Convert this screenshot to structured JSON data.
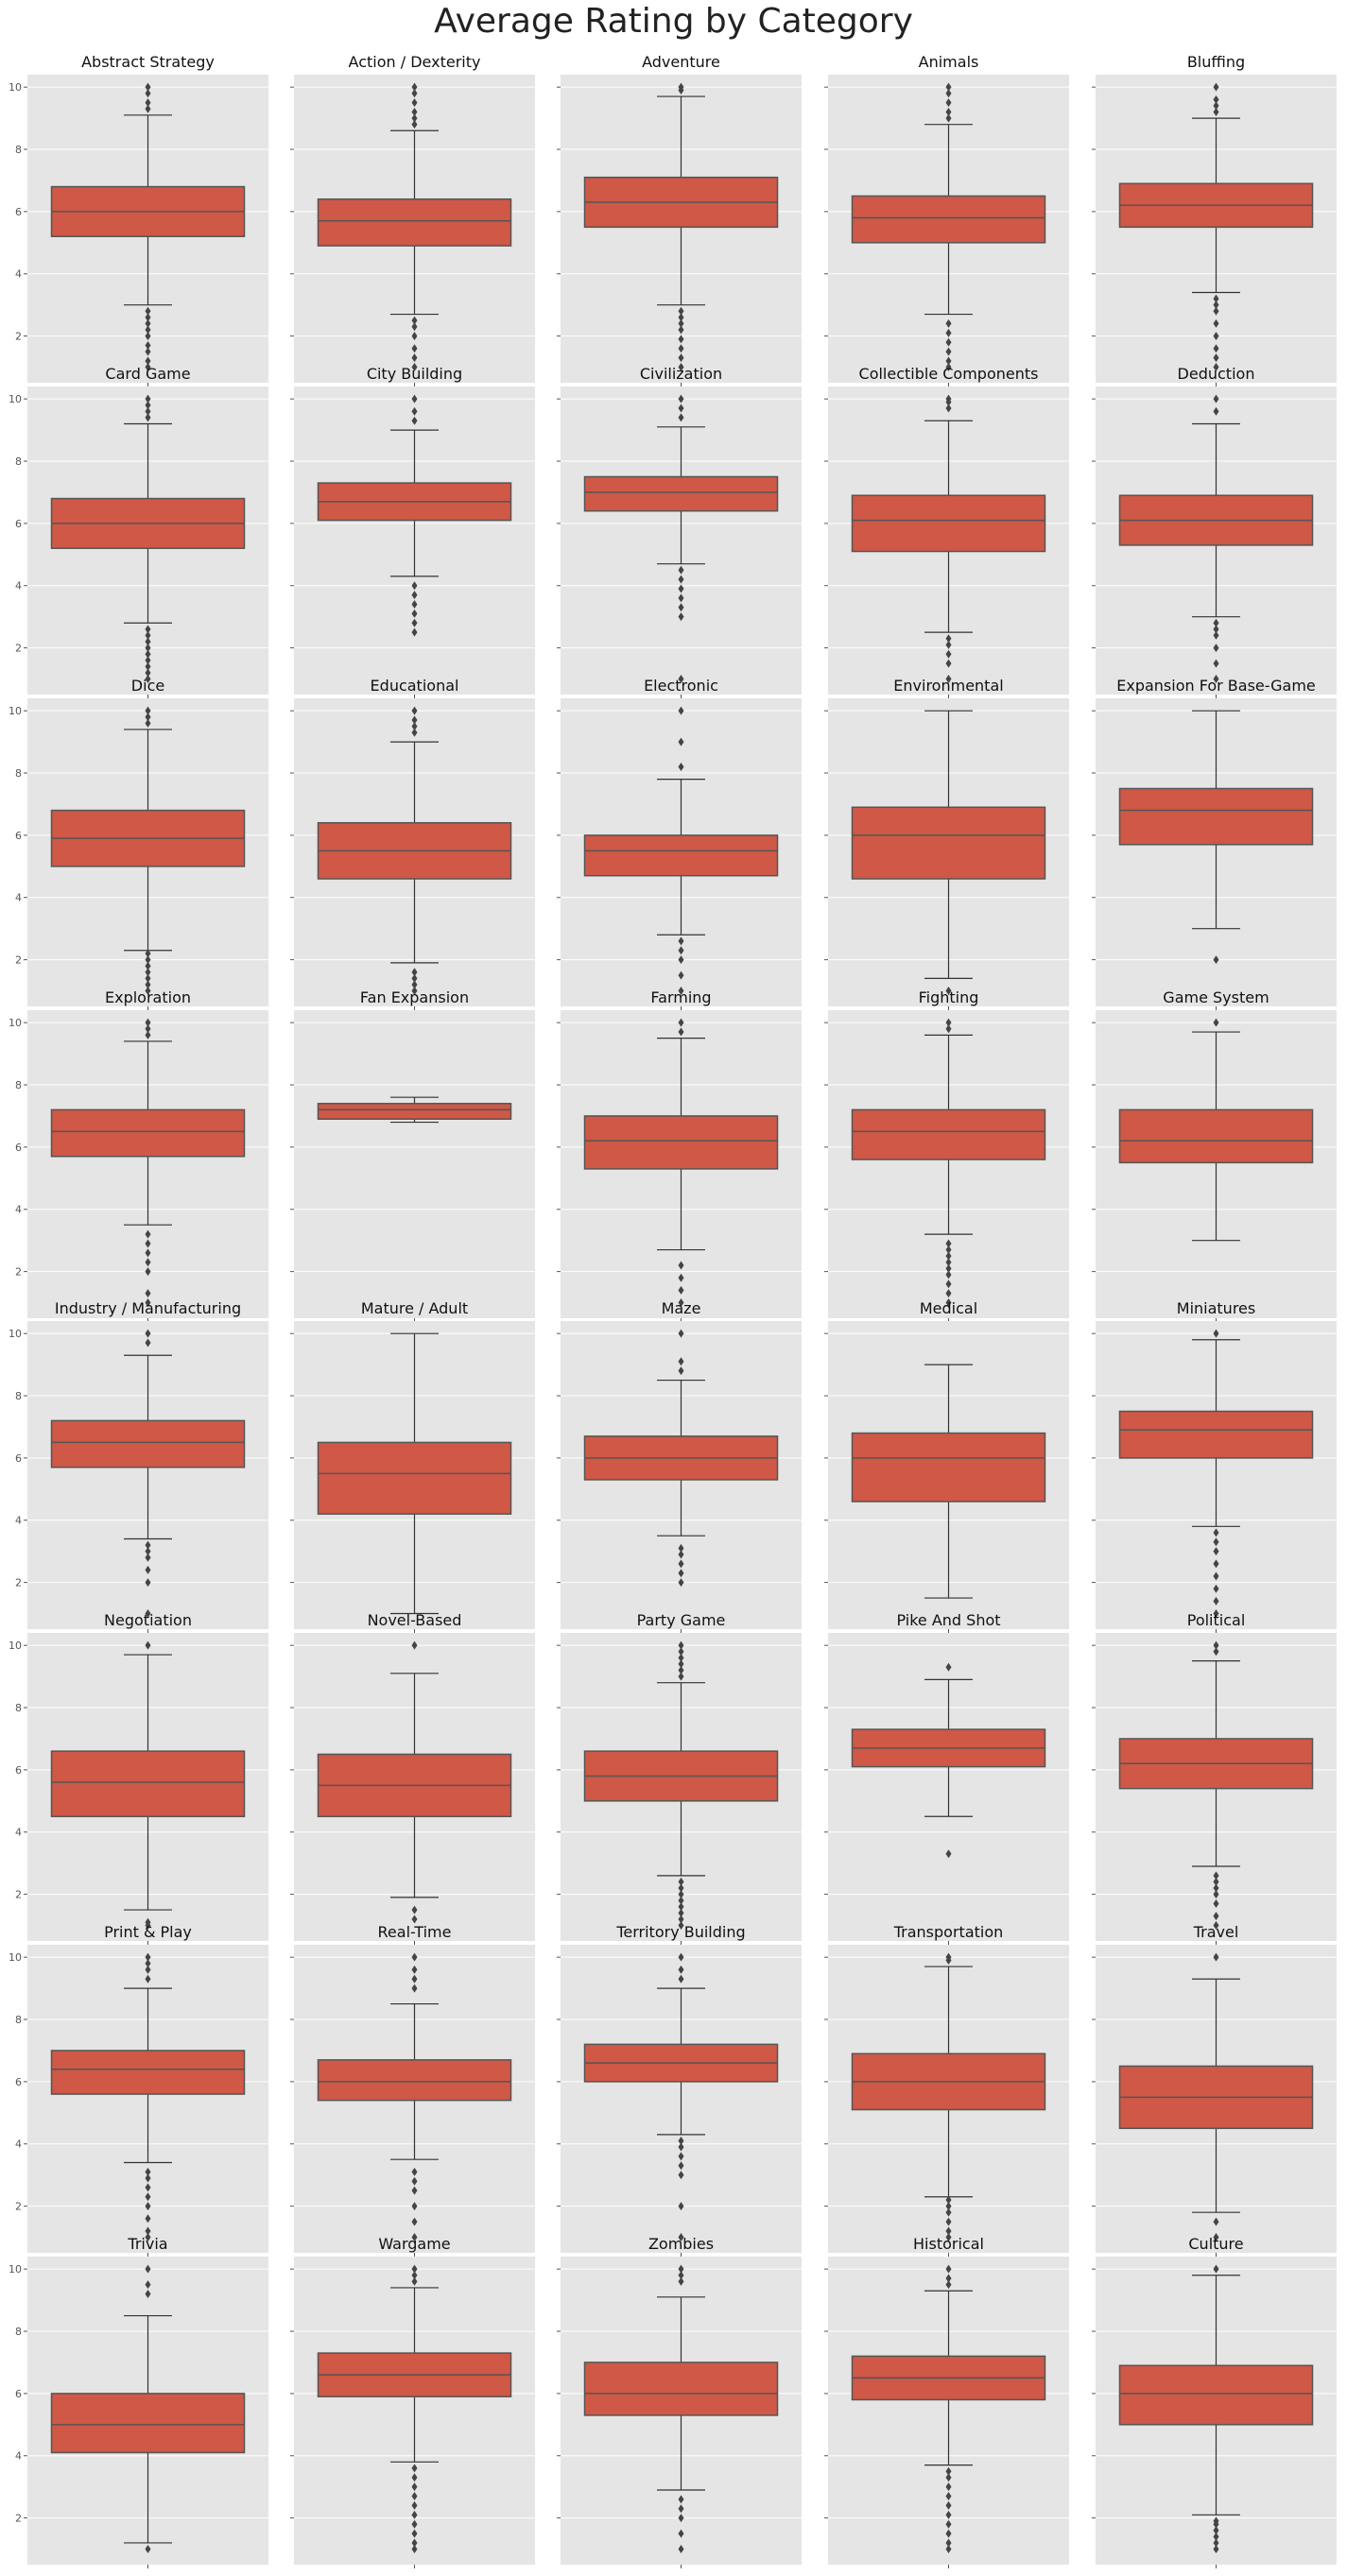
{
  "figure": {
    "title": "Average Rating by Category"
  },
  "colors": {
    "panel_bg": "#e5e5e5",
    "grid": "#ffffff",
    "box_fill": "#cf5846",
    "box_edge": "#555555",
    "whisker": "#333333",
    "flier": "#444444"
  },
  "chart_data": {
    "type": "box",
    "layout": {
      "rows": 8,
      "cols": 5,
      "sharey": true
    },
    "ylim": [
      0.5,
      10.4
    ],
    "yticks": [
      2,
      4,
      6,
      8,
      10
    ],
    "grid": true,
    "panels": [
      {
        "category": "Abstract Strategy",
        "whislo": 3.0,
        "q1": 5.2,
        "med": 6.0,
        "q3": 6.8,
        "whishi": 9.1,
        "fliers": [
          1.0,
          1.2,
          1.5,
          1.7,
          2.0,
          2.2,
          2.4,
          2.6,
          2.8,
          9.3,
          9.5,
          9.8,
          10.0
        ]
      },
      {
        "category": "Action / Dexterity",
        "whislo": 2.7,
        "q1": 4.9,
        "med": 5.7,
        "q3": 6.4,
        "whishi": 8.6,
        "fliers": [
          1.0,
          1.3,
          1.6,
          2.0,
          2.3,
          2.5,
          8.8,
          9.0,
          9.2,
          9.5,
          9.8,
          10.0
        ]
      },
      {
        "category": "Adventure",
        "whislo": 3.0,
        "q1": 5.5,
        "med": 6.3,
        "q3": 7.1,
        "whishi": 9.7,
        "fliers": [
          1.0,
          1.3,
          1.6,
          1.9,
          2.2,
          2.4,
          2.6,
          2.8,
          9.9,
          10.0
        ]
      },
      {
        "category": "Animals",
        "whislo": 2.7,
        "q1": 5.0,
        "med": 5.8,
        "q3": 6.5,
        "whishi": 8.8,
        "fliers": [
          1.0,
          1.2,
          1.5,
          1.8,
          2.1,
          2.4,
          9.0,
          9.2,
          9.5,
          9.8,
          10.0
        ]
      },
      {
        "category": "Bluffing",
        "whislo": 3.4,
        "q1": 5.5,
        "med": 6.2,
        "q3": 6.9,
        "whishi": 9.0,
        "fliers": [
          1.0,
          1.3,
          1.6,
          2.0,
          2.4,
          2.8,
          3.0,
          3.2,
          9.2,
          9.4,
          9.6,
          10.0
        ]
      },
      {
        "category": "Card Game",
        "whislo": 2.8,
        "q1": 5.2,
        "med": 6.0,
        "q3": 6.8,
        "whishi": 9.2,
        "fliers": [
          1.0,
          1.2,
          1.4,
          1.6,
          1.8,
          2.0,
          2.2,
          2.4,
          2.6,
          9.4,
          9.6,
          9.8,
          10.0
        ]
      },
      {
        "category": "City Building",
        "whislo": 4.3,
        "q1": 6.1,
        "med": 6.7,
        "q3": 7.3,
        "whishi": 9.0,
        "fliers": [
          2.5,
          2.8,
          3.1,
          3.4,
          3.7,
          4.0,
          9.3,
          9.6,
          10.0
        ]
      },
      {
        "category": "Civilization",
        "whislo": 4.7,
        "q1": 6.4,
        "med": 7.0,
        "q3": 7.5,
        "whishi": 9.1,
        "fliers": [
          1.0,
          3.0,
          3.3,
          3.6,
          3.9,
          4.2,
          4.5,
          9.4,
          9.7,
          10.0
        ]
      },
      {
        "category": "Collectible Components",
        "whislo": 2.5,
        "q1": 5.1,
        "med": 6.1,
        "q3": 6.9,
        "whishi": 9.3,
        "fliers": [
          1.0,
          1.5,
          1.8,
          2.1,
          2.3,
          9.7,
          9.9,
          10.0
        ]
      },
      {
        "category": "Deduction",
        "whislo": 3.0,
        "q1": 5.3,
        "med": 6.1,
        "q3": 6.9,
        "whishi": 9.2,
        "fliers": [
          1.0,
          1.5,
          2.0,
          2.4,
          2.6,
          2.8,
          9.6,
          10.0
        ]
      },
      {
        "category": "Dice",
        "whislo": 2.3,
        "q1": 5.0,
        "med": 5.9,
        "q3": 6.8,
        "whishi": 9.4,
        "fliers": [
          1.0,
          1.2,
          1.4,
          1.6,
          1.8,
          2.0,
          2.2,
          9.6,
          9.8,
          10.0
        ]
      },
      {
        "category": "Educational",
        "whislo": 1.9,
        "q1": 4.6,
        "med": 5.5,
        "q3": 6.4,
        "whishi": 9.0,
        "fliers": [
          1.0,
          1.2,
          1.4,
          1.6,
          9.3,
          9.5,
          9.7,
          10.0
        ]
      },
      {
        "category": "Electronic",
        "whislo": 2.8,
        "q1": 4.7,
        "med": 5.5,
        "q3": 6.0,
        "whishi": 7.8,
        "fliers": [
          1.0,
          1.5,
          2.0,
          2.3,
          2.6,
          8.2,
          9.0,
          10.0
        ]
      },
      {
        "category": "Environmental",
        "whislo": 1.4,
        "q1": 4.6,
        "med": 6.0,
        "q3": 6.9,
        "whishi": 10.0,
        "fliers": [
          1.0
        ]
      },
      {
        "category": "Expansion For Base-Game",
        "whislo": 3.0,
        "q1": 5.7,
        "med": 6.8,
        "q3": 7.5,
        "whishi": 10.0,
        "fliers": [
          2.0
        ]
      },
      {
        "category": "Exploration",
        "whislo": 3.5,
        "q1": 5.7,
        "med": 6.5,
        "q3": 7.2,
        "whishi": 9.4,
        "fliers": [
          1.0,
          1.3,
          2.0,
          2.3,
          2.6,
          2.9,
          3.2,
          9.6,
          9.8,
          10.0
        ]
      },
      {
        "category": "Fan Expansion",
        "whislo": 6.8,
        "q1": 6.9,
        "med": 7.2,
        "q3": 7.4,
        "whishi": 7.6,
        "fliers": []
      },
      {
        "category": "Farming",
        "whislo": 2.7,
        "q1": 5.3,
        "med": 6.2,
        "q3": 7.0,
        "whishi": 9.5,
        "fliers": [
          1.0,
          1.4,
          1.8,
          2.2,
          9.7,
          10.0
        ]
      },
      {
        "category": "Fighting",
        "whislo": 3.2,
        "q1": 5.6,
        "med": 6.5,
        "q3": 7.2,
        "whishi": 9.6,
        "fliers": [
          1.0,
          1.3,
          1.6,
          1.9,
          2.1,
          2.3,
          2.5,
          2.7,
          2.9,
          9.8,
          10.0
        ]
      },
      {
        "category": "Game System",
        "whislo": 3.0,
        "q1": 5.5,
        "med": 6.2,
        "q3": 7.2,
        "whishi": 9.7,
        "fliers": [
          10.0
        ]
      },
      {
        "category": "Industry / Manufacturing",
        "whislo": 3.4,
        "q1": 5.7,
        "med": 6.5,
        "q3": 7.2,
        "whishi": 9.3,
        "fliers": [
          1.0,
          2.0,
          2.4,
          2.8,
          3.0,
          3.2,
          9.7,
          10.0
        ]
      },
      {
        "category": "Mature / Adult",
        "whislo": 1.0,
        "q1": 4.2,
        "med": 5.5,
        "q3": 6.5,
        "whishi": 10.0,
        "fliers": []
      },
      {
        "category": "Maze",
        "whislo": 3.5,
        "q1": 5.3,
        "med": 6.0,
        "q3": 6.7,
        "whishi": 8.5,
        "fliers": [
          2.0,
          2.3,
          2.6,
          2.9,
          3.1,
          8.8,
          9.1,
          10.0
        ]
      },
      {
        "category": "Medical",
        "whislo": 1.5,
        "q1": 4.6,
        "med": 6.0,
        "q3": 6.8,
        "whishi": 9.0,
        "fliers": []
      },
      {
        "category": "Miniatures",
        "whislo": 3.8,
        "q1": 6.0,
        "med": 6.9,
        "q3": 7.5,
        "whishi": 9.8,
        "fliers": [
          1.0,
          1.4,
          1.8,
          2.2,
          2.6,
          3.0,
          3.3,
          3.6,
          10.0
        ]
      },
      {
        "category": "Negotiation",
        "whislo": 1.5,
        "q1": 4.5,
        "med": 5.6,
        "q3": 6.6,
        "whishi": 9.7,
        "fliers": [
          1.0,
          1.1,
          10.0
        ]
      },
      {
        "category": "Novel-Based",
        "whislo": 1.9,
        "q1": 4.5,
        "med": 5.5,
        "q3": 6.5,
        "whishi": 9.1,
        "fliers": [
          1.2,
          1.5,
          10.0
        ]
      },
      {
        "category": "Party Game",
        "whislo": 2.6,
        "q1": 5.0,
        "med": 5.8,
        "q3": 6.6,
        "whishi": 8.8,
        "fliers": [
          1.0,
          1.2,
          1.4,
          1.6,
          1.8,
          2.0,
          2.2,
          2.4,
          9.0,
          9.2,
          9.4,
          9.6,
          9.8,
          10.0
        ]
      },
      {
        "category": "Pike And Shot",
        "whislo": 4.5,
        "q1": 6.1,
        "med": 6.7,
        "q3": 7.3,
        "whishi": 8.9,
        "fliers": [
          3.3,
          9.3
        ]
      },
      {
        "category": "Political",
        "whislo": 2.9,
        "q1": 5.4,
        "med": 6.2,
        "q3": 7.0,
        "whishi": 9.5,
        "fliers": [
          1.0,
          1.3,
          1.7,
          2.0,
          2.2,
          2.4,
          2.6,
          9.8,
          10.0
        ]
      },
      {
        "category": "Print & Play",
        "whislo": 3.4,
        "q1": 5.6,
        "med": 6.4,
        "q3": 7.0,
        "whishi": 9.0,
        "fliers": [
          1.0,
          1.2,
          1.6,
          2.0,
          2.3,
          2.6,
          2.9,
          3.1,
          9.3,
          9.6,
          9.8,
          10.0
        ]
      },
      {
        "category": "Real-Time",
        "whislo": 3.5,
        "q1": 5.4,
        "med": 6.0,
        "q3": 6.7,
        "whishi": 8.5,
        "fliers": [
          1.0,
          1.5,
          2.0,
          2.5,
          2.8,
          3.1,
          9.0,
          9.3,
          9.6,
          10.0
        ]
      },
      {
        "category": "Territory Building",
        "whislo": 4.3,
        "q1": 6.0,
        "med": 6.6,
        "q3": 7.2,
        "whishi": 9.0,
        "fliers": [
          1.0,
          2.0,
          3.0,
          3.3,
          3.6,
          3.9,
          4.1,
          9.3,
          9.6,
          10.0
        ]
      },
      {
        "category": "Transportation",
        "whislo": 2.3,
        "q1": 5.1,
        "med": 6.0,
        "q3": 6.9,
        "whishi": 9.7,
        "fliers": [
          1.0,
          1.2,
          1.5,
          1.8,
          2.0,
          2.2,
          9.9,
          10.0
        ]
      },
      {
        "category": "Travel",
        "whislo": 1.8,
        "q1": 4.5,
        "med": 5.5,
        "q3": 6.5,
        "whishi": 9.3,
        "fliers": [
          1.0,
          1.5,
          10.0
        ]
      },
      {
        "category": "Trivia",
        "whislo": 1.2,
        "q1": 4.1,
        "med": 5.0,
        "q3": 6.0,
        "whishi": 8.5,
        "fliers": [
          1.0,
          9.2,
          9.5,
          10.0
        ]
      },
      {
        "category": "Wargame",
        "whislo": 3.8,
        "q1": 5.9,
        "med": 6.6,
        "q3": 7.3,
        "whishi": 9.4,
        "fliers": [
          1.0,
          1.2,
          1.5,
          1.8,
          2.1,
          2.4,
          2.7,
          3.0,
          3.3,
          3.6,
          9.6,
          9.8,
          10.0
        ]
      },
      {
        "category": "Zombies",
        "whislo": 2.9,
        "q1": 5.3,
        "med": 6.0,
        "q3": 7.0,
        "whishi": 9.1,
        "fliers": [
          1.0,
          1.5,
          2.0,
          2.3,
          2.6,
          9.6,
          9.8,
          10.0
        ]
      },
      {
        "category": "Historical",
        "whislo": 3.7,
        "q1": 5.8,
        "med": 6.5,
        "q3": 7.2,
        "whishi": 9.3,
        "fliers": [
          1.0,
          1.2,
          1.5,
          1.8,
          2.1,
          2.4,
          2.7,
          3.0,
          3.3,
          3.5,
          9.5,
          9.7,
          10.0
        ]
      },
      {
        "category": "Culture",
        "whislo": 2.1,
        "q1": 5.0,
        "med": 6.0,
        "q3": 6.9,
        "whishi": 9.8,
        "fliers": [
          1.0,
          1.2,
          1.4,
          1.6,
          1.8,
          1.9,
          10.0
        ]
      }
    ]
  }
}
